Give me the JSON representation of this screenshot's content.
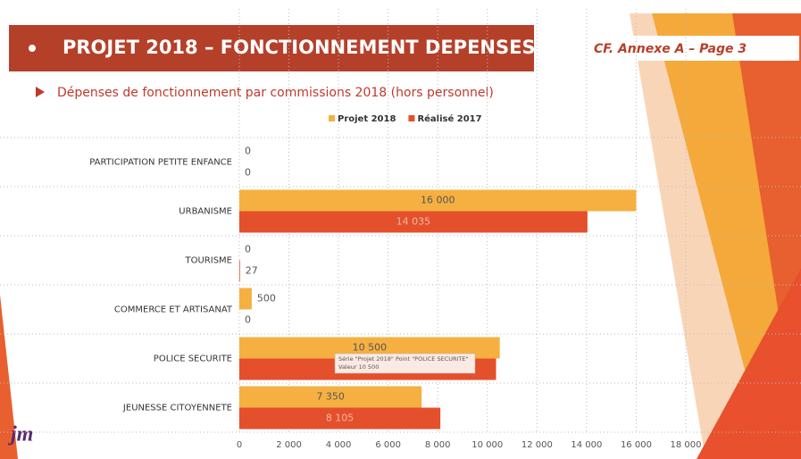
{
  "chart_data": {
    "type": "barh",
    "title": "PROJET 2018 – FONCTIONNEMENT DEPENSES",
    "annotation": "CF. Annexe A – Page 3",
    "subtitle": "Dépenses de fonctionnement par commissions 2018 (hors personnel)",
    "categories": [
      "PARTICIPATION PETITE ENFANCE",
      "URBANISME",
      "TOURISME",
      "COMMERCE ET ARTISANAT",
      "POLICE SECURITE",
      "JEUNESSE CITOYENNETE"
    ],
    "series": [
      {
        "name": "Projet 2018",
        "color": "#f5b041",
        "values": [
          0,
          16000,
          0,
          500,
          10500,
          7350
        ],
        "value_labels": [
          "0",
          "16 000",
          "0",
          "500",
          "10 500",
          "7 350"
        ]
      },
      {
        "name": "Réalisé 2017",
        "color": "#e4502c",
        "values": [
          0,
          14035,
          27,
          0,
          10350,
          8105
        ],
        "value_labels": [
          "0",
          "14 035",
          "27",
          "0",
          null,
          "8 105"
        ]
      }
    ],
    "xlim": [
      0,
      18000
    ],
    "xticks": [
      0,
      {
        "value": 2000,
        "label": "2 000"
      },
      {
        "value": 4000,
        "label": "4 000"
      },
      {
        "value": 6000,
        "label": "6 000"
      },
      {
        "value": 8000,
        "label": "8 000"
      },
      {
        "value": 10000,
        "label": "10 000"
      },
      {
        "value": 12000,
        "label": "12 000"
      },
      {
        "value": 14000,
        "label": "14 000"
      },
      {
        "value": 16000,
        "label": "16 000"
      },
      {
        "value": 18000,
        "label": "18 000"
      }
    ],
    "grid": true,
    "legend": "top",
    "tooltip": [
      "Série \"Projet 2018\" Point \"POLICE SECURITE\"",
      "Valeur 10 500"
    ],
    "logo": "jm"
  }
}
